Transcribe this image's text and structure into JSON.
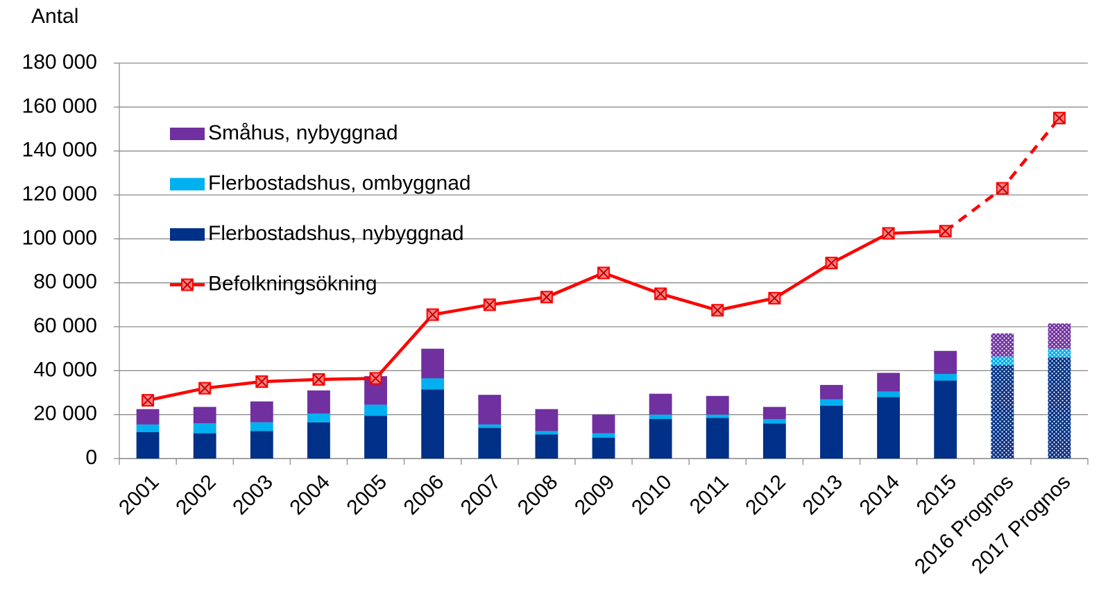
{
  "chart_data": {
    "type": "stacked_bar_line",
    "y_label": "Antal",
    "categories": [
      "2001",
      "2002",
      "2003",
      "2004",
      "2005",
      "2006",
      "2007",
      "2008",
      "2009",
      "2010",
      "2011",
      "2012",
      "2013",
      "2014",
      "2015",
      "2016 Prognos",
      "2017 Prognos"
    ],
    "series": [
      {
        "name": "Flerbostadshus, nybyggnad",
        "kind": "bar",
        "color": "#003087",
        "values": [
          12000,
          11500,
          12500,
          16500,
          19500,
          31500,
          14000,
          11000,
          9500,
          18000,
          18500,
          16000,
          24000,
          28000,
          35500,
          42500,
          46000
        ]
      },
      {
        "name": "Flerbostadshus, ombyggnad",
        "kind": "bar",
        "color": "#00b0f0",
        "values": [
          3500,
          4500,
          4000,
          4000,
          5000,
          5000,
          1500,
          1500,
          2000,
          2000,
          1500,
          2000,
          3000,
          2500,
          3000,
          4000,
          4000
        ]
      },
      {
        "name": "Småhus, nybyggnad",
        "kind": "bar",
        "color": "#7030a0",
        "values": [
          7000,
          7500,
          9500,
          10500,
          13000,
          13500,
          13500,
          10000,
          8500,
          9500,
          8500,
          5500,
          6500,
          8500,
          10500,
          10500,
          11500
        ]
      },
      {
        "name": "Befolkningsökning",
        "kind": "line",
        "color": "#ff0000",
        "values": [
          26500,
          32000,
          35000,
          36000,
          36500,
          65500,
          70000,
          73500,
          84500,
          75000,
          67500,
          73000,
          89000,
          102500,
          103500,
          123000,
          155000
        ]
      }
    ],
    "forecast_from": 15,
    "ylim": [
      0,
      180000
    ],
    "yticks": [
      0,
      {
        "value": 20000,
        "label": "20 000"
      },
      {
        "value": 40000,
        "label": "40 000"
      },
      {
        "value": 60000,
        "label": "60 000"
      },
      {
        "value": 80000,
        "label": "80 000"
      },
      {
        "value": 100000,
        "label": "100 000"
      },
      {
        "value": 120000,
        "label": "120 000"
      },
      {
        "value": 140000,
        "label": "140 000"
      },
      {
        "value": 160000,
        "label": "160 000"
      },
      {
        "value": 180000,
        "label": "180 000"
      }
    ],
    "grid": true,
    "legend": "upper left"
  }
}
